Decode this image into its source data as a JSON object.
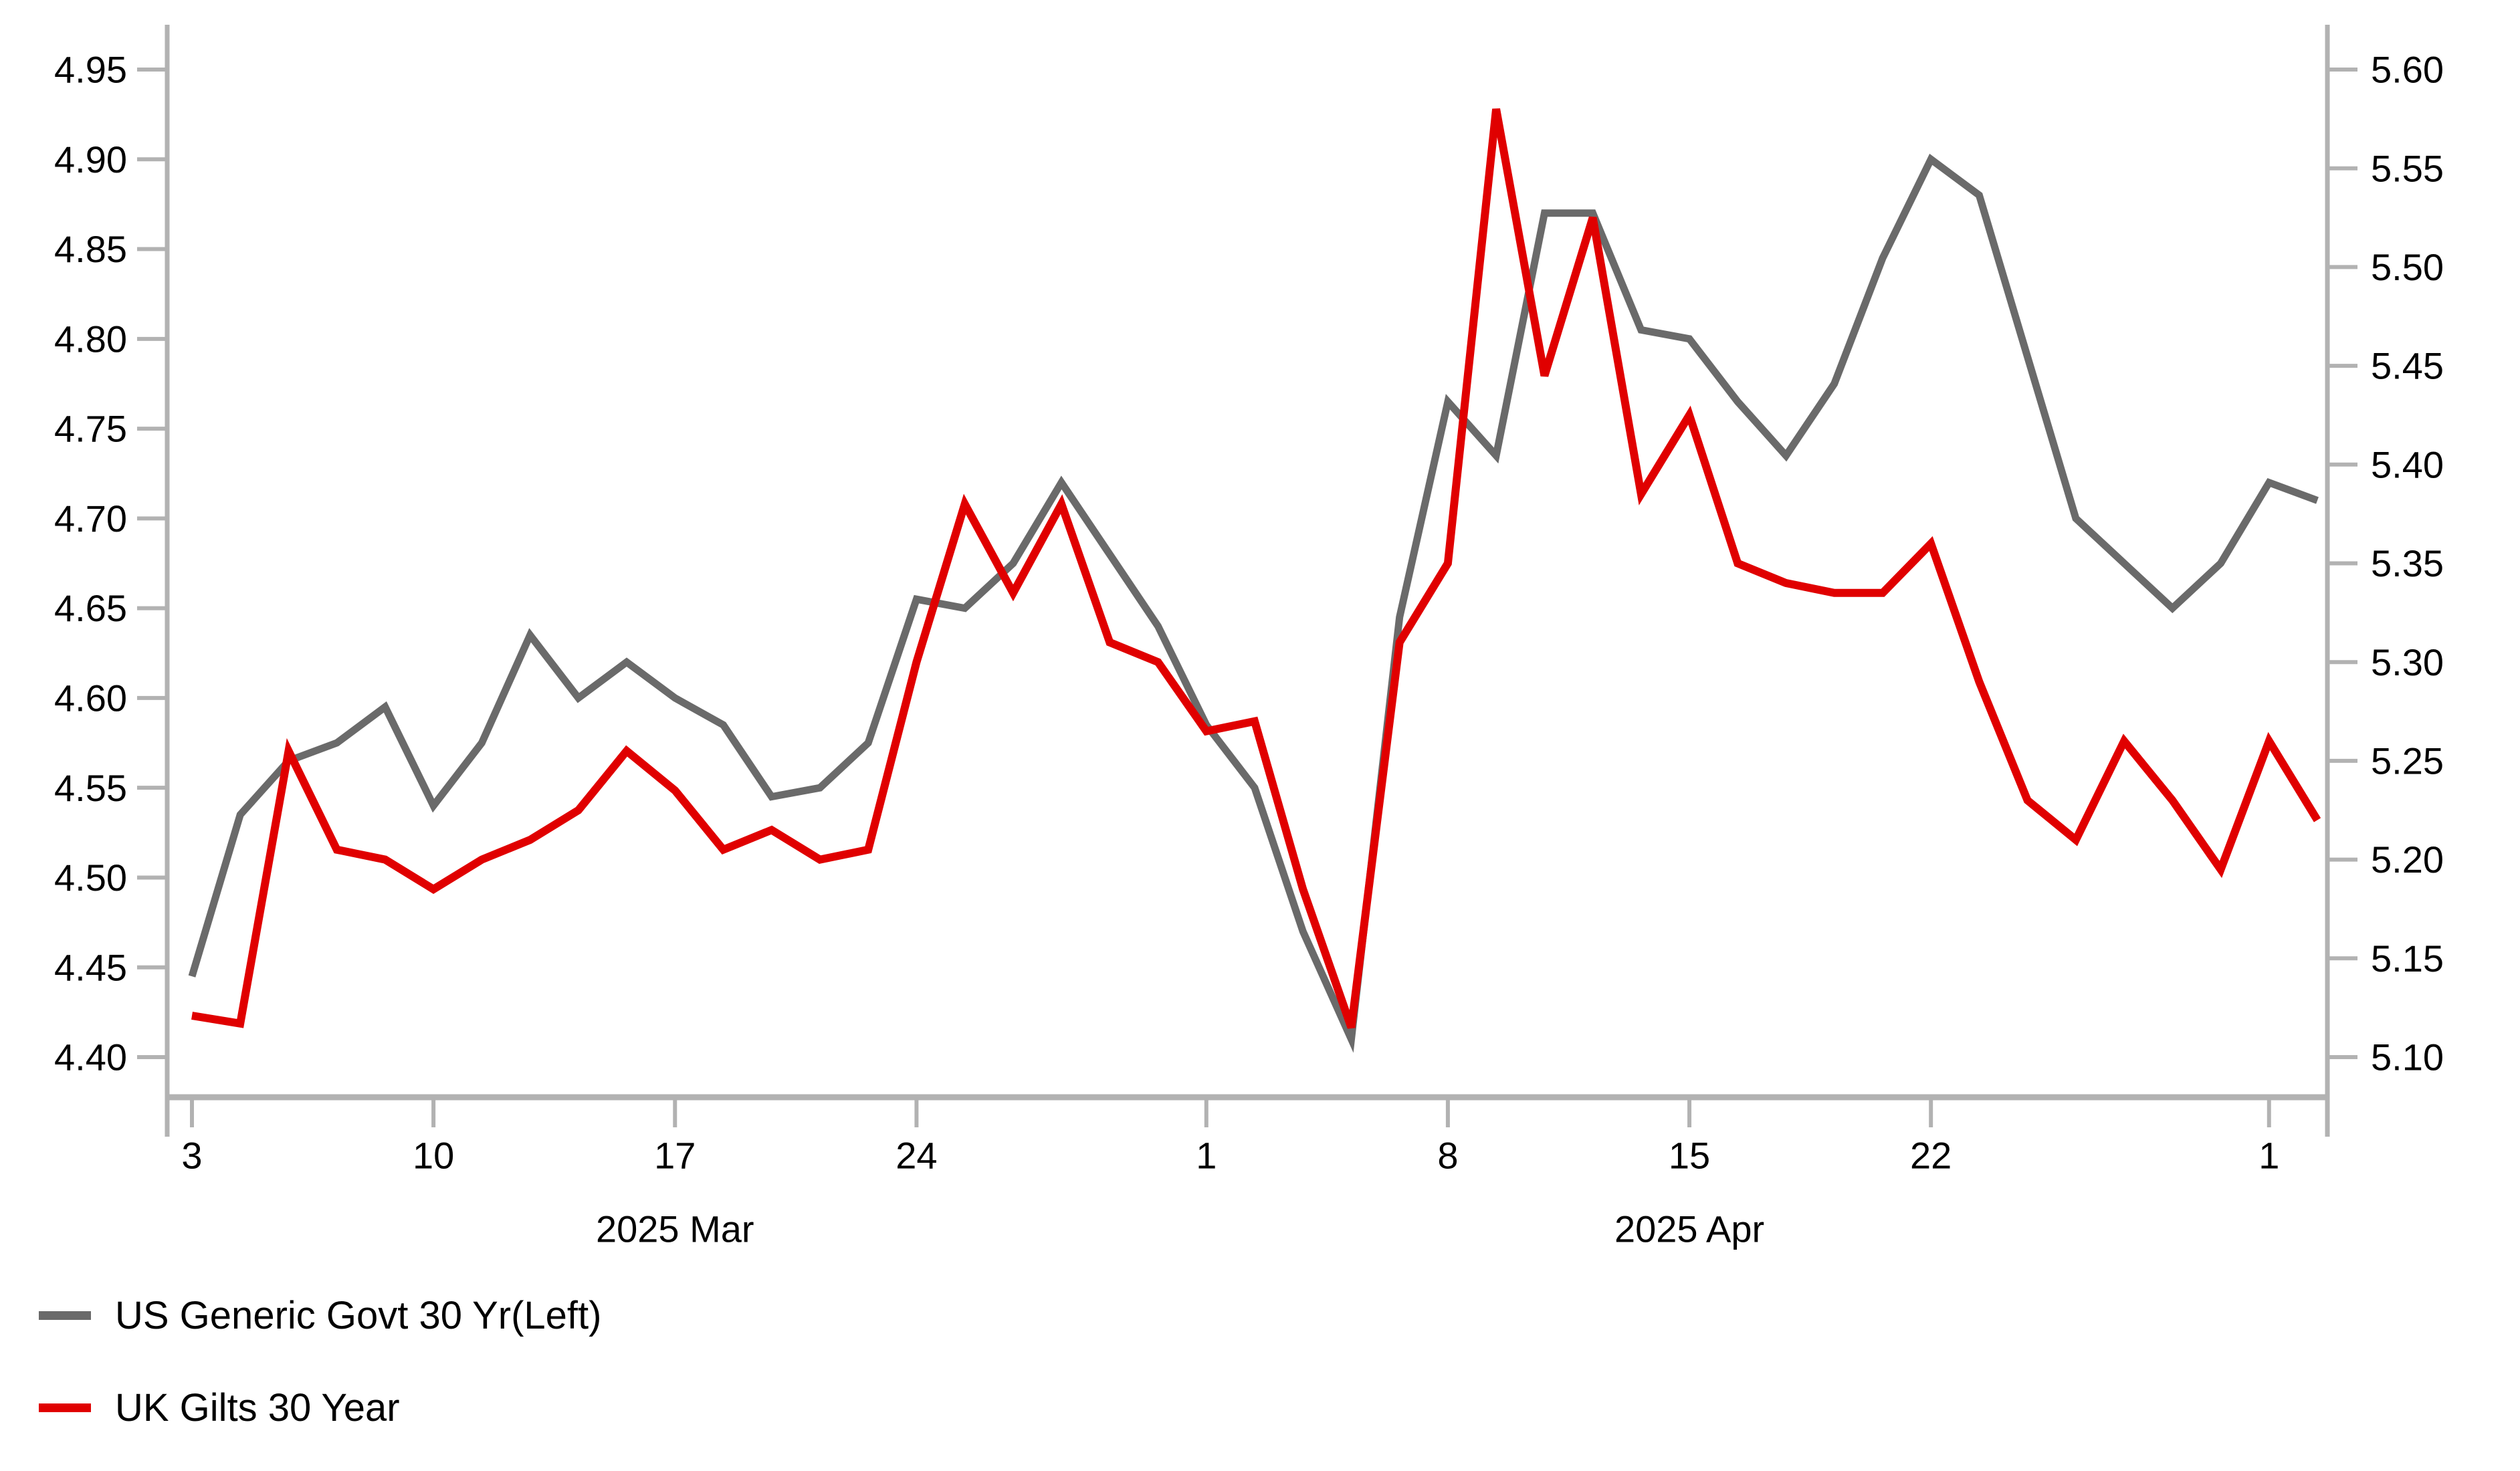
{
  "chart_data": {
    "type": "line",
    "title": "",
    "grid": "off",
    "legend_position": "bottom-left",
    "x_dates": [
      "Mar 3",
      "Mar 4",
      "Mar 5",
      "Mar 6",
      "Mar 7",
      "Mar 10",
      "Mar 11",
      "Mar 12",
      "Mar 13",
      "Mar 14",
      "Mar 17",
      "Mar 18",
      "Mar 19",
      "Mar 20",
      "Mar 21",
      "Mar 24",
      "Mar 25",
      "Mar 26",
      "Mar 27",
      "Mar 28",
      "Mar 31",
      "Apr 1",
      "Apr 2",
      "Apr 3",
      "Apr 4",
      "Apr 7",
      "Apr 8",
      "Apr 9",
      "Apr 10",
      "Apr 11",
      "Apr 14",
      "Apr 15",
      "Apr 16",
      "Apr 17",
      "Apr 18",
      "Apr 21",
      "Apr 22",
      "Apr 23",
      "Apr 24",
      "Apr 25",
      "Apr 28",
      "Apr 29",
      "Apr 30",
      "May 1",
      "May 2"
    ],
    "series": [
      {
        "name": "US Generic Govt 30 Yr(Left)",
        "axis": "left",
        "color": "#6a6a6a",
        "values": [
          4.445,
          4.535,
          4.565,
          4.575,
          4.595,
          4.54,
          4.575,
          4.635,
          4.6,
          4.62,
          4.6,
          4.585,
          4.545,
          4.55,
          4.575,
          4.655,
          4.65,
          4.675,
          4.72,
          4.68,
          4.64,
          4.585,
          4.55,
          4.47,
          4.41,
          4.645,
          4.765,
          4.735,
          4.87,
          4.87,
          4.805,
          4.8,
          4.765,
          4.735,
          4.775,
          4.845,
          4.9,
          4.88,
          4.79,
          4.7,
          4.675,
          4.65,
          4.675,
          4.72,
          4.71
        ]
      },
      {
        "name": "UK Gilts 30 Year",
        "axis": "right",
        "color": "#e00000",
        "values": [
          5.121,
          5.117,
          5.255,
          5.205,
          5.2,
          5.185,
          5.2,
          5.21,
          5.225,
          5.255,
          5.235,
          5.205,
          5.215,
          5.2,
          5.205,
          5.3,
          5.38,
          5.335,
          5.38,
          5.31,
          5.3,
          5.265,
          5.27,
          5.185,
          5.115,
          5.31,
          5.35,
          5.58,
          5.445,
          5.525,
          5.385,
          5.425,
          5.35,
          5.34,
          5.335,
          5.335,
          5.36,
          5.29,
          5.23,
          5.21,
          5.26,
          5.23,
          5.195,
          5.26,
          5.22
        ]
      }
    ],
    "left_axis": {
      "min": 4.4,
      "max": 4.95,
      "tick_labels": [
        "4.95",
        "4.90",
        "4.85",
        "4.80",
        "4.75",
        "4.70",
        "4.65",
        "4.60",
        "4.55",
        "4.50",
        "4.45",
        "4.40"
      ]
    },
    "right_axis": {
      "min": 5.1,
      "max": 5.6,
      "tick_labels": [
        "5.60",
        "5.55",
        "5.50",
        "5.45",
        "5.40",
        "5.35",
        "5.30",
        "5.25",
        "5.20",
        "5.15",
        "5.10"
      ]
    },
    "x_ticks": [
      {
        "label": "3",
        "index": 0
      },
      {
        "label": "10",
        "index": 5
      },
      {
        "label": "17",
        "index": 10
      },
      {
        "label": "24",
        "index": 15
      },
      {
        "label": "1",
        "index": 21
      },
      {
        "label": "8",
        "index": 26
      },
      {
        "label": "15",
        "index": 31
      },
      {
        "label": "22",
        "index": 36
      },
      {
        "label": "1",
        "index": 43
      }
    ],
    "month_labels": [
      {
        "text": "2025 Mar",
        "index": 10
      },
      {
        "text": "2025 Apr",
        "index": 31
      }
    ]
  },
  "legend": {
    "items": [
      {
        "label": "US Generic Govt 30 Yr(Left)",
        "color": "#6a6a6a"
      },
      {
        "label": "UK Gilts 30 Year",
        "color": "#e00000"
      }
    ]
  },
  "colors": {
    "axis": "#b2b2b2",
    "label_text": "#000000",
    "background": "#ffffff"
  }
}
